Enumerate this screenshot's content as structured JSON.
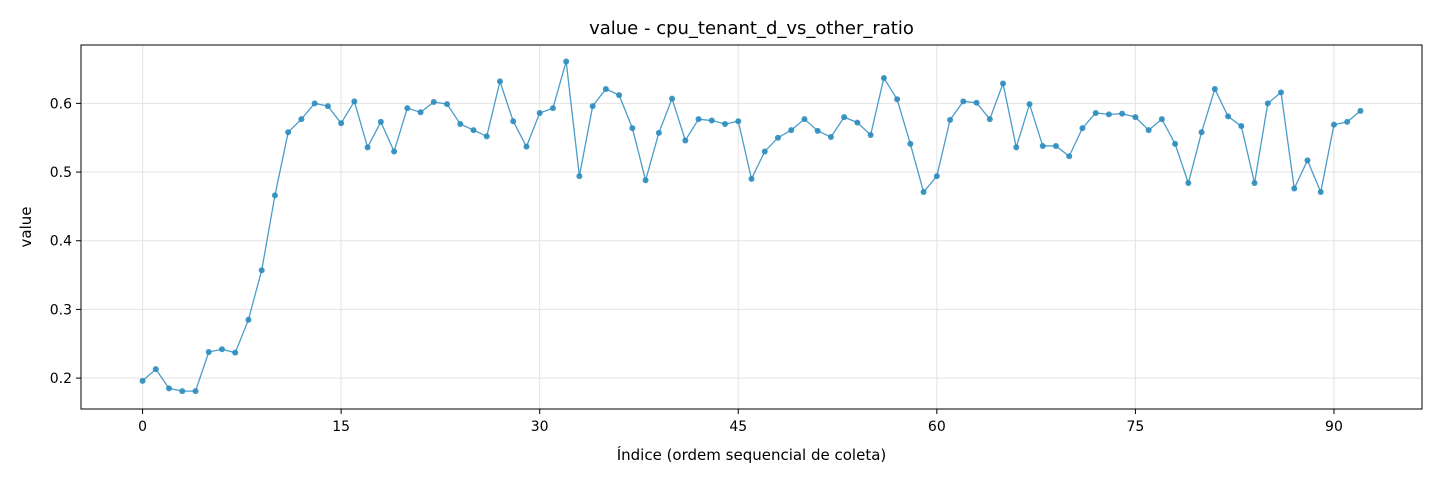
{
  "chart_data": {
    "type": "line",
    "title": "value - cpu_tenant_d_vs_other_ratio",
    "xlabel": "Índice (ordem sequencial de coleta)",
    "ylabel": "value",
    "xlim": [
      -4.65,
      96.65
    ],
    "ylim": [
      0.155,
      0.685
    ],
    "xticks": [
      0,
      15,
      30,
      45,
      60,
      75,
      90
    ],
    "yticks": [
      0.2,
      0.3,
      0.4,
      0.5,
      0.6
    ],
    "grid": true,
    "line_color": "#2b8cbe",
    "series": [
      {
        "x": [
          0,
          1,
          2,
          3,
          4,
          5,
          6,
          7,
          8,
          9,
          10,
          11,
          12,
          13,
          14,
          15,
          16,
          17,
          18,
          19,
          20,
          21,
          22,
          23,
          24,
          25,
          26,
          27,
          28,
          29,
          30,
          31,
          32,
          33,
          34,
          35,
          36,
          37,
          38,
          39,
          40,
          41,
          42,
          43,
          44,
          45,
          46,
          47,
          48,
          49,
          50,
          51,
          52,
          53,
          54,
          55,
          56,
          57,
          58,
          59,
          60,
          61,
          62,
          63,
          64,
          65,
          66,
          67,
          68,
          69,
          70,
          71,
          72,
          73,
          74,
          75,
          76,
          77,
          78,
          79,
          80,
          81,
          82,
          83,
          84,
          85,
          86,
          87,
          88,
          89,
          90,
          91,
          92
        ],
        "values": [
          0.196,
          0.213,
          0.185,
          0.181,
          0.181,
          0.238,
          0.242,
          0.237,
          0.285,
          0.357,
          0.466,
          0.558,
          0.577,
          0.6,
          0.596,
          0.571,
          0.603,
          0.536,
          0.573,
          0.53,
          0.593,
          0.587,
          0.602,
          0.599,
          0.57,
          0.561,
          0.552,
          0.632,
          0.574,
          0.537,
          0.586,
          0.593,
          0.661,
          0.494,
          0.596,
          0.621,
          0.612,
          0.564,
          0.488,
          0.557,
          0.607,
          0.546,
          0.577,
          0.575,
          0.57,
          0.574,
          0.49,
          0.53,
          0.55,
          0.561,
          0.577,
          0.56,
          0.551,
          0.58,
          0.572,
          0.554,
          0.637,
          0.606,
          0.541,
          0.471,
          0.494,
          0.576,
          0.603,
          0.601,
          0.577,
          0.629,
          0.536,
          0.599,
          0.538,
          0.538,
          0.523,
          0.564,
          0.586,
          0.584,
          0.585,
          0.58,
          0.561,
          0.577,
          0.541,
          0.484,
          0.558,
          0.621,
          0.581,
          0.567,
          0.484,
          0.6,
          0.616,
          0.476,
          0.517,
          0.471,
          0.569,
          0.573,
          0.589
        ]
      }
    ]
  }
}
